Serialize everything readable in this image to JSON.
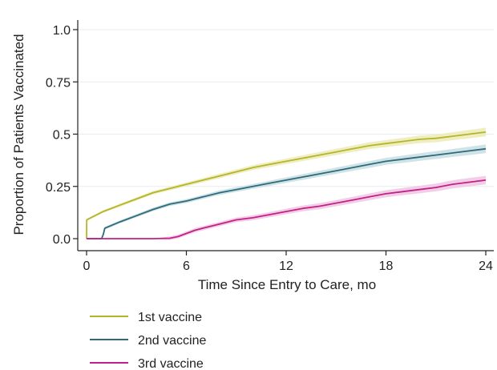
{
  "chart_data": {
    "type": "line",
    "xlabel": "Time Since Entry to Care, mo",
    "ylabel": "Proportion of Patients Vaccinated",
    "xlim": [
      0,
      24
    ],
    "ylim": [
      0,
      1
    ],
    "x_ticks": [
      0,
      6,
      12,
      18,
      24
    ],
    "x_tick_labels": [
      "0",
      "6",
      "12",
      "18",
      "24"
    ],
    "y_ticks": [
      0,
      0.25,
      0.5,
      0.75,
      1
    ],
    "y_tick_labels": [
      "0.0",
      "0.25",
      "0.5",
      "0.75",
      "1.0"
    ],
    "grid": "horizontal",
    "legend_position": "bottom-left",
    "series": [
      {
        "name": "1st vaccine",
        "color": "#b5b527",
        "band_color": "#ecebb8",
        "x": [
          0,
          0.01,
          0.5,
          1,
          2,
          3,
          4,
          5,
          6,
          7,
          8,
          9,
          10,
          11,
          12,
          13,
          14,
          15,
          16,
          17,
          18,
          19,
          20,
          21,
          22,
          23,
          24
        ],
        "y": [
          0,
          0.09,
          0.11,
          0.13,
          0.16,
          0.19,
          0.22,
          0.24,
          0.26,
          0.28,
          0.3,
          0.32,
          0.34,
          0.355,
          0.37,
          0.385,
          0.4,
          0.415,
          0.43,
          0.445,
          0.455,
          0.465,
          0.475,
          0.48,
          0.49,
          0.5,
          0.51
        ]
      },
      {
        "name": "2nd vaccine",
        "color": "#2d6a7a",
        "band_color": "#c7dde2",
        "x": [
          0,
          0.9,
          1.0,
          1.1,
          2,
          3,
          4,
          5,
          6,
          7,
          8,
          9,
          10,
          11,
          12,
          13,
          14,
          15,
          16,
          17,
          18,
          19,
          20,
          21,
          22,
          23,
          24
        ],
        "y": [
          0,
          0,
          0.02,
          0.05,
          0.08,
          0.11,
          0.14,
          0.165,
          0.18,
          0.2,
          0.22,
          0.235,
          0.25,
          0.265,
          0.28,
          0.295,
          0.31,
          0.325,
          0.34,
          0.355,
          0.37,
          0.38,
          0.39,
          0.4,
          0.41,
          0.42,
          0.43
        ]
      },
      {
        "name": "3rd vaccine",
        "color": "#c4208a",
        "band_color": "#efc6e0",
        "x": [
          0,
          1,
          2,
          3,
          4,
          5,
          5.5,
          6,
          6.5,
          7,
          8,
          9,
          10,
          11,
          12,
          13,
          14,
          15,
          16,
          17,
          18,
          19,
          20,
          21,
          22,
          23,
          24
        ],
        "y": [
          0,
          0,
          0,
          0,
          0,
          0.002,
          0.01,
          0.025,
          0.04,
          0.05,
          0.07,
          0.09,
          0.1,
          0.115,
          0.13,
          0.145,
          0.155,
          0.17,
          0.185,
          0.2,
          0.215,
          0.225,
          0.235,
          0.245,
          0.26,
          0.27,
          0.28
        ]
      }
    ]
  }
}
